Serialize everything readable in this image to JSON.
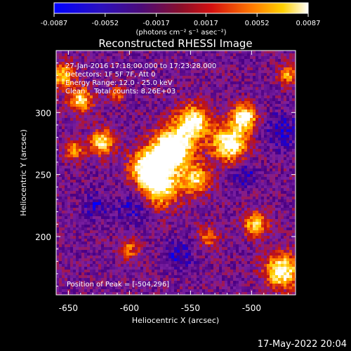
{
  "colorbar": {
    "ticks": [
      "-0.0087",
      "-0.0052",
      "-0.0017",
      "0.0017",
      "0.0052",
      "0.0087"
    ],
    "unit_label": "(photons cm⁻² s⁻¹ asec⁻²)",
    "range": [
      -0.0087,
      0.0087
    ]
  },
  "chart_data": {
    "type": "heatmap",
    "title": "Reconstructed RHESSI Image",
    "xlabel": "Heliocentric X (arcsec)",
    "ylabel": "Heliocentric Y (arcsec)",
    "xlim": [
      -660,
      -464
    ],
    "ylim": [
      153,
      350
    ],
    "x_tick_labels": [
      "-650",
      "-600",
      "-550",
      "-500"
    ],
    "x_ticks": [
      -650,
      -600,
      -550,
      -500
    ],
    "y_tick_labels": [
      "200",
      "250",
      "300"
    ],
    "y_ticks": [
      200,
      250,
      300
    ],
    "info": [
      "27-Jan-2016 17:18:00.000 to 17:23:28.000",
      "Detectors: 1F 5F 7F, Att 0",
      "Energy Range: 12.0 - 25.0 keV",
      "Clean    Total counts: 8.26E+03"
    ],
    "peak_label": "Position of Peak = [-504,296]",
    "peak": [
      -504,
      296
    ],
    "grid": false,
    "colormap": [
      "#0000ff",
      "#4b0082",
      "#7a1fa0",
      "#c01010",
      "#ff6a00",
      "#ffd000",
      "#ffffff"
    ]
  },
  "footer": {
    "date": "17-May-2022 20:04"
  }
}
